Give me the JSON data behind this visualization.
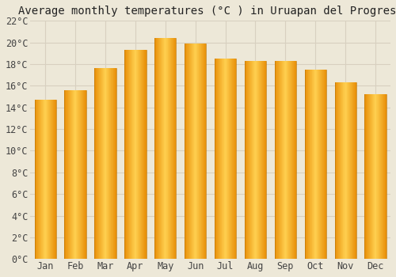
{
  "title": "Average monthly temperatures (°C ) in Uruapan del Progreso",
  "months": [
    "Jan",
    "Feb",
    "Mar",
    "Apr",
    "May",
    "Jun",
    "Jul",
    "Aug",
    "Sep",
    "Oct",
    "Nov",
    "Dec"
  ],
  "values": [
    14.7,
    15.6,
    17.6,
    19.3,
    20.4,
    19.9,
    18.5,
    18.3,
    18.3,
    17.5,
    16.3,
    15.2
  ],
  "bar_color_center": "#FFD050",
  "bar_color_edge": "#E8900A",
  "background_color": "#EDE8D8",
  "grid_color": "#D8D0C0",
  "ylim": [
    0,
    22
  ],
  "ytick_step": 2,
  "title_fontsize": 10,
  "tick_fontsize": 8.5,
  "font_family": "monospace"
}
